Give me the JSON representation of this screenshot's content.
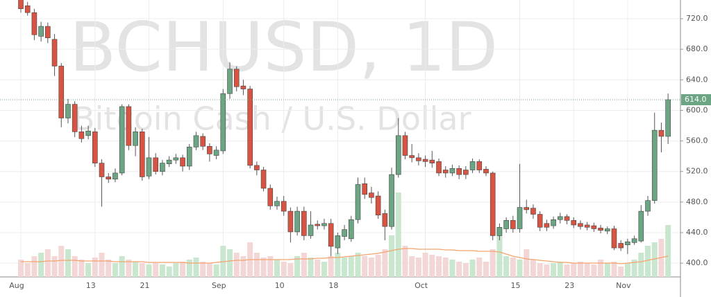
{
  "chart_data": {
    "type": "candlestick",
    "watermark": "BCHUSD, 1D",
    "watermark_subtitle": "Bitcoin Cash / U.S. Dollar",
    "categories": [
      "Aug",
      null,
      null,
      null,
      null,
      null,
      null,
      null,
      null,
      null,
      null,
      "13",
      null,
      null,
      null,
      null,
      null,
      null,
      null,
      "21",
      null,
      null,
      null,
      null,
      null,
      null,
      null,
      null,
      null,
      null,
      "Sep",
      null,
      null,
      null,
      null,
      null,
      null,
      null,
      null,
      "10",
      null,
      null,
      null,
      null,
      null,
      null,
      null,
      "18",
      null,
      null,
      null,
      null,
      null,
      null,
      null,
      null,
      null,
      null,
      null,
      null,
      "Oct",
      null,
      null,
      null,
      null,
      null,
      null,
      null,
      null,
      null,
      null,
      null,
      null,
      null,
      "15",
      null,
      null,
      null,
      null,
      null,
      null,
      null,
      "23",
      null,
      null,
      null,
      null,
      null,
      null,
      null,
      "Nov",
      null,
      null,
      null,
      null,
      null,
      null
    ],
    "open": [
      748,
      737,
      728,
      697,
      710,
      693,
      658,
      590,
      608,
      572,
      567,
      572,
      531,
      513,
      510,
      518,
      605,
      554,
      572,
      514,
      538,
      520,
      530,
      535,
      538,
      527,
      552,
      566,
      553,
      541,
      547,
      622,
      654,
      632,
      628,
      528,
      522,
      498,
      475,
      481,
      468,
      441,
      468,
      436,
      451,
      449,
      452,
      420,
      435,
      432,
      457,
      504,
      492,
      488,
      465,
      448,
      516,
      567,
      541,
      538,
      536,
      535,
      533,
      522,
      518,
      524,
      522,
      522,
      533,
      523,
      518,
      436,
      445,
      456,
      445,
      473,
      472,
      464,
      452,
      449,
      457,
      461,
      456,
      452,
      450,
      449,
      446,
      442,
      445,
      426,
      424,
      427,
      429,
      468,
      482,
      574,
      566
    ],
    "high": [
      755,
      742,
      733,
      716,
      715,
      700,
      662,
      615,
      612,
      580,
      580,
      577,
      536,
      518,
      524,
      608,
      608,
      578,
      576,
      565,
      544,
      535,
      540,
      543,
      542,
      556,
      572,
      570,
      557,
      553,
      628,
      663,
      658,
      640,
      632,
      533,
      526,
      503,
      487,
      488,
      473,
      474,
      474,
      468,
      456,
      458,
      458,
      440,
      450,
      462,
      512,
      512,
      500,
      494,
      470,
      525,
      590,
      572,
      556,
      544,
      541,
      547,
      537,
      527,
      529,
      528,
      527,
      537,
      536,
      527,
      520,
      452,
      460,
      462,
      530,
      483,
      477,
      468,
      457,
      461,
      466,
      464,
      460,
      456,
      454,
      453,
      450,
      448,
      449,
      430,
      432,
      436,
      476,
      488,
      597,
      584,
      622
    ],
    "low": [
      728,
      724,
      692,
      690,
      688,
      645,
      578,
      583,
      565,
      558,
      562,
      526,
      474,
      505,
      506,
      515,
      548,
      540,
      508,
      510,
      516,
      515,
      526,
      530,
      520,
      522,
      548,
      548,
      533,
      536,
      543,
      615,
      625,
      620,
      524,
      515,
      494,
      470,
      470,
      462,
      427,
      436,
      430,
      432,
      444,
      444,
      409,
      412,
      430,
      428,
      452,
      484,
      478,
      458,
      430,
      444,
      512,
      536,
      532,
      528,
      526,
      525,
      514,
      512,
      514,
      510,
      510,
      518,
      518,
      514,
      430,
      430,
      440,
      440,
      440,
      465,
      458,
      442,
      442,
      445,
      452,
      451,
      446,
      444,
      443,
      441,
      439,
      438,
      417,
      416,
      412,
      424,
      427,
      462,
      478,
      545,
      556
    ],
    "close": [
      733,
      728,
      699,
      710,
      695,
      658,
      590,
      608,
      572,
      563,
      573,
      531,
      513,
      510,
      518,
      605,
      554,
      572,
      513,
      538,
      520,
      531,
      535,
      538,
      527,
      552,
      567,
      553,
      543,
      548,
      622,
      654,
      631,
      628,
      528,
      522,
      498,
      475,
      481,
      468,
      441,
      468,
      436,
      450,
      449,
      452,
      422,
      436,
      444,
      457,
      503,
      490,
      486,
      463,
      448,
      516,
      567,
      541,
      538,
      534,
      533,
      531,
      518,
      518,
      524,
      516,
      516,
      533,
      522,
      518,
      436,
      447,
      456,
      445,
      473,
      470,
      464,
      447,
      447,
      457,
      461,
      456,
      450,
      448,
      447,
      445,
      443,
      445,
      420,
      420,
      428,
      432,
      468,
      482,
      574,
      566,
      614
    ],
    "volume": [
      25,
      20,
      30,
      35,
      40,
      30,
      45,
      40,
      30,
      25,
      20,
      28,
      35,
      25,
      20,
      30,
      25,
      22,
      20,
      18,
      20,
      18,
      15,
      20,
      22,
      25,
      28,
      22,
      20,
      18,
      45,
      40,
      35,
      30,
      50,
      35,
      28,
      30,
      25,
      22,
      20,
      30,
      35,
      28,
      25,
      22,
      30,
      35,
      28,
      30,
      35,
      30,
      28,
      32,
      40,
      60,
      122,
      45,
      30,
      28,
      35,
      32,
      30,
      28,
      25,
      22,
      20,
      25,
      28,
      22,
      40,
      70,
      30,
      28,
      25,
      40,
      25,
      20,
      18,
      20,
      22,
      18,
      20,
      22,
      20,
      18,
      25,
      20,
      22,
      15,
      20,
      25,
      35,
      45,
      50,
      55,
      75
    ],
    "volume_ma": [
      22,
      22,
      22,
      22,
      23,
      23,
      24,
      24,
      24,
      23,
      23,
      23,
      23,
      23,
      22,
      22,
      22,
      22,
      22,
      21,
      21,
      21,
      21,
      21,
      21,
      20,
      20,
      20,
      20,
      21,
      22,
      23,
      24,
      24,
      25,
      25,
      25,
      25,
      25,
      25,
      25,
      26,
      26,
      26,
      27,
      27,
      28,
      28,
      29,
      30,
      31,
      32,
      33,
      34,
      36,
      38,
      40,
      41,
      41,
      40,
      40,
      40,
      40,
      39,
      39,
      38,
      38,
      38,
      37,
      37,
      37,
      36,
      33,
      30,
      28,
      26,
      25,
      24,
      23,
      22,
      21,
      21,
      20,
      20,
      20,
      20,
      20,
      20,
      20,
      19,
      20,
      21,
      22,
      24,
      26,
      28,
      30
    ],
    "volume_ylim": [
      0,
      400
    ],
    "ylim": [
      382,
      744.5
    ],
    "yticks": [
      {
        "value": 400,
        "label": "400.0"
      },
      {
        "value": 440,
        "label": "440.0"
      },
      {
        "value": 480,
        "label": "480.0"
      },
      {
        "value": 520,
        "label": "520.0"
      },
      {
        "value": 560,
        "label": "560.0"
      },
      {
        "value": 600,
        "label": "600.0"
      },
      {
        "value": 640,
        "label": "640.0"
      },
      {
        "value": 680,
        "label": "680.0"
      },
      {
        "value": 720,
        "label": "720.0"
      }
    ],
    "close_label": "614.0",
    "grid": true,
    "up_color": "#6ba583",
    "down_color": "#d75442",
    "up_volume_color": "#c9e6cf",
    "down_volume_color": "#f3d6d6",
    "ma_color": "#f5a36c"
  }
}
